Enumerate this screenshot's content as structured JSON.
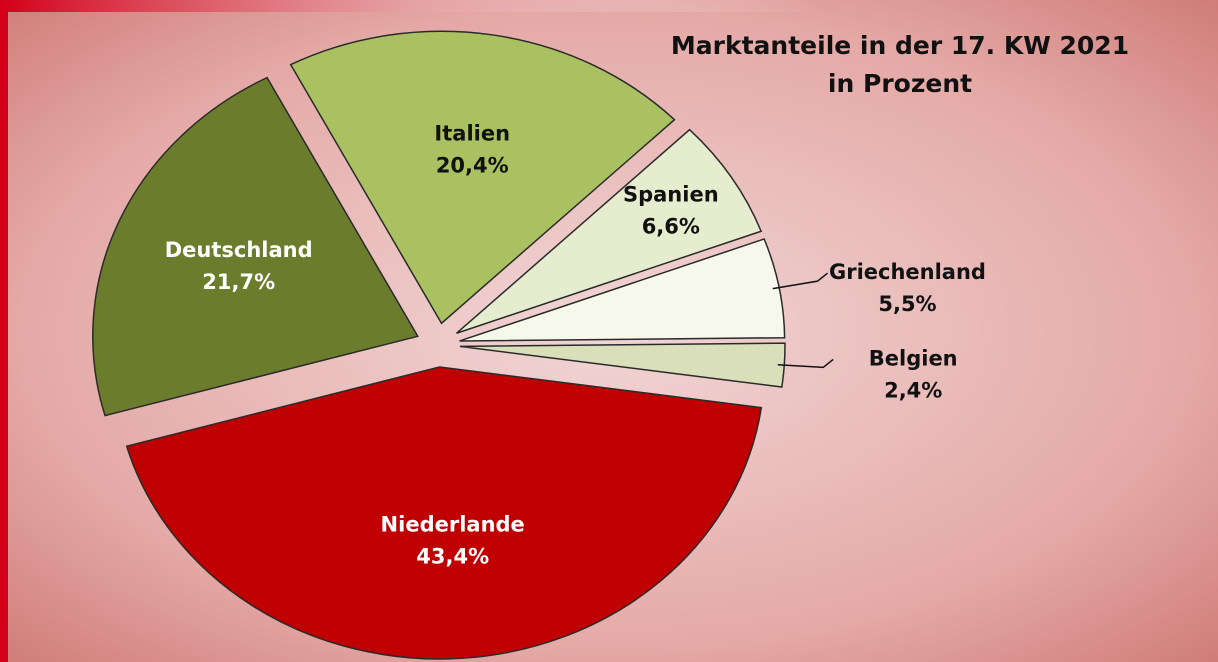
{
  "chart_data": {
    "type": "pie",
    "title": "Marktanteile in der 17. KW 2021",
    "subtitle": "in Prozent",
    "categories": [
      "Niederlande",
      "Deutschland",
      "Italien",
      "Spanien",
      "Griechenland",
      "Belgien"
    ],
    "values": [
      43.4,
      21.7,
      20.4,
      6.6,
      5.5,
      2.4
    ],
    "value_labels": [
      "43,4%",
      "21,7%",
      "20,4%",
      "6,6%",
      "5,5%",
      "2,4%"
    ],
    "colors": [
      "#c00000",
      "#6b7d2c",
      "#a9c161",
      "#e6ecce",
      "#f6f8ec",
      "#d9dfb9"
    ]
  }
}
